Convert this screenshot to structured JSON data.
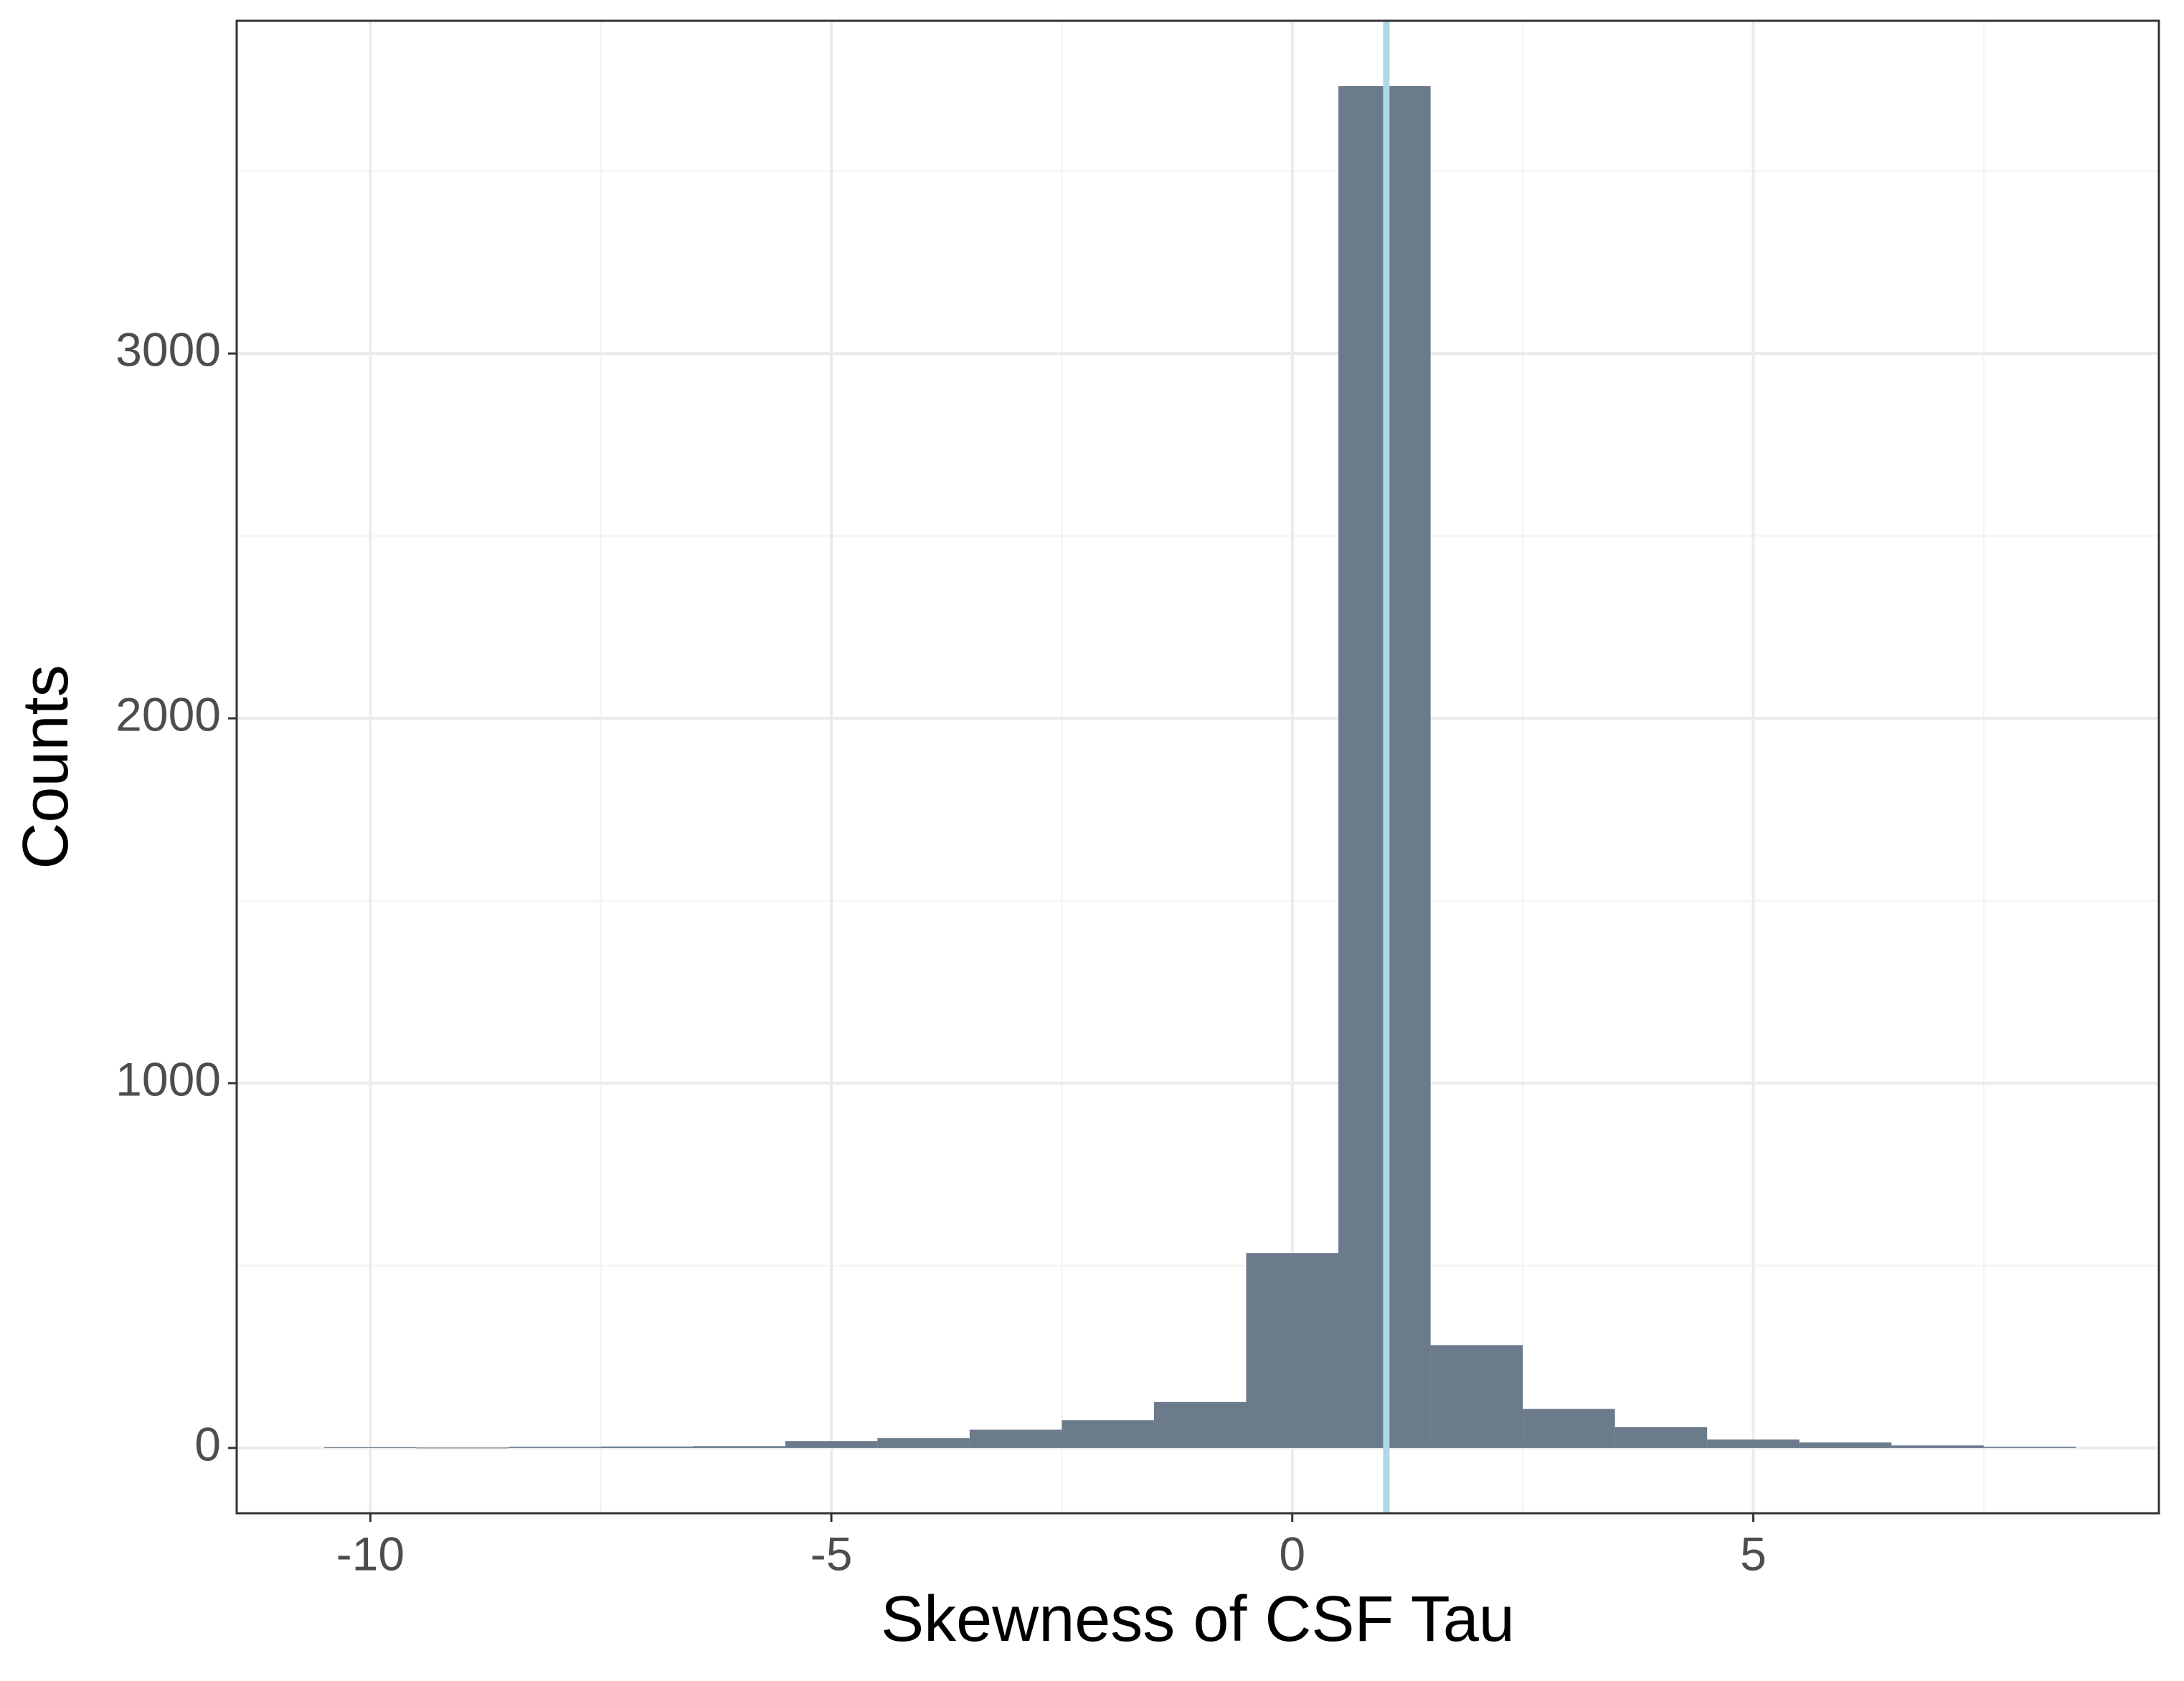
{
  "chart_data": {
    "type": "histogram",
    "x_label": "Skewness of CSF Tau",
    "y_label": "Counts",
    "bins": [
      -10.5,
      -9.5,
      -8.5,
      -7.5,
      -6.5,
      -5.5,
      -4.5,
      -3.5,
      -2.5,
      -1.5,
      -0.5,
      0.5,
      1.5,
      2.5,
      3.5,
      4.5,
      5.5,
      6.5,
      7.5,
      8.5
    ],
    "values": [
      2,
      1,
      3,
      4,
      5,
      19,
      27,
      50,
      76,
      126,
      534,
      3733,
      282,
      107,
      57,
      23,
      15,
      7,
      3
    ],
    "color": "#6b7b8c",
    "vline": 1.02,
    "vline_color": "#add8e6",
    "xlim": [
      -11.45,
      9.4
    ],
    "ylim": [
      -179,
      3912
    ],
    "xticks": [
      -10,
      -5,
      0,
      5
    ],
    "yticks": [
      0,
      1000,
      2000,
      3000
    ],
    "x_minor_breaks": [
      -7.5,
      -2.5,
      2.5,
      7.5
    ],
    "y_minor_breaks": [
      500,
      1500,
      2500,
      3500
    ],
    "grid": true
  }
}
